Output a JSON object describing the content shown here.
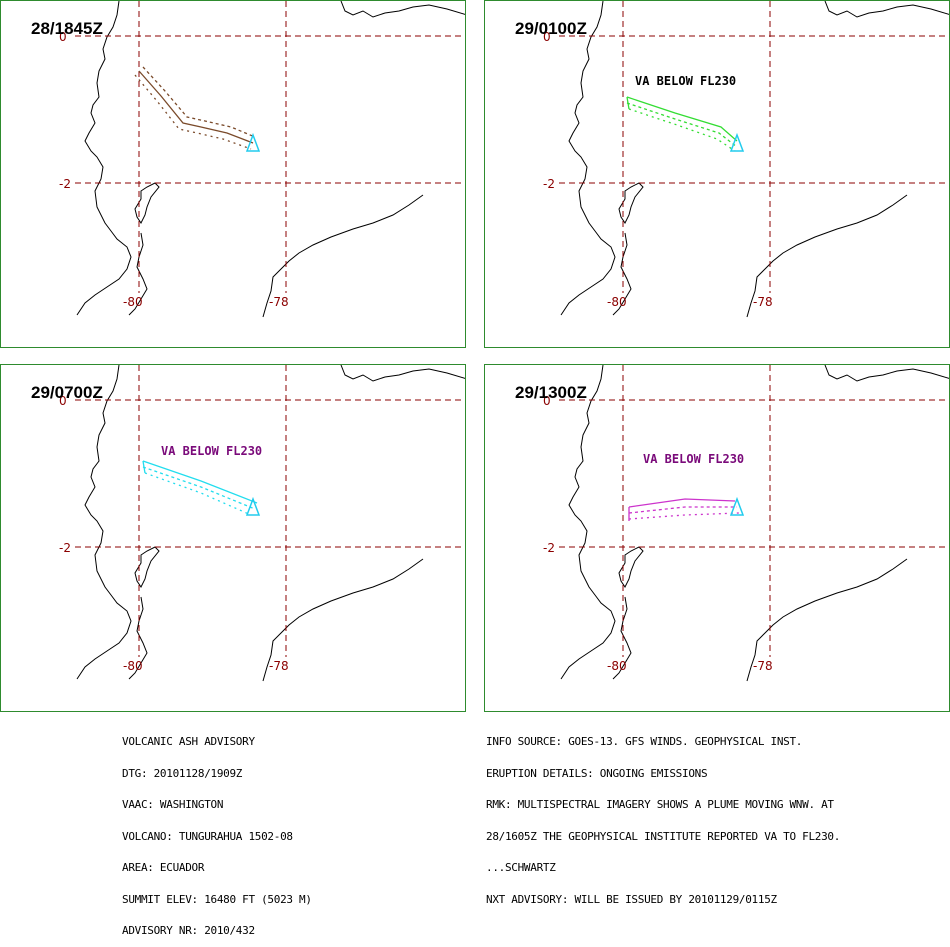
{
  "panels": [
    {
      "time": "28/1845Z",
      "label": "",
      "plume_color": "#7a4a2a",
      "label_color": "#000000"
    },
    {
      "time": "29/0100Z",
      "label": "VA BELOW FL230",
      "plume_color": "#33dd33",
      "label_color": "#000000"
    },
    {
      "time": "29/0700Z",
      "label": "VA BELOW FL230",
      "plume_color": "#22ddee",
      "label_color": "#7a0a7a"
    },
    {
      "time": "29/1300Z",
      "label": "VA BELOW FL230",
      "plume_color": "#cc33cc",
      "label_color": "#7a0a7a"
    }
  ],
  "grid": {
    "lat_labels": [
      "0",
      "-2"
    ],
    "lon_labels": [
      "-80",
      "-78"
    ]
  },
  "colors": {
    "grid": "#8b0000",
    "coast": "#000000",
    "volcano": "#22ccee",
    "frame": "#2e8b2e"
  },
  "icons": {
    "volcano": "triangle-icon"
  },
  "advisory_left": [
    "VOLCANIC ASH ADVISORY",
    "DTG: 20101128/1909Z",
    "VAAC: WASHINGTON",
    "VOLCANO: TUNGURAHUA 1502-08",
    "AREA: ECUADOR",
    "SUMMIT ELEV: 16480 FT (5023 M)",
    "ADVISORY NR: 2010/432"
  ],
  "advisory_right": [
    "INFO SOURCE: GOES-13. GFS WINDS. GEOPHYSICAL INST.",
    "ERUPTION DETAILS: ONGOING EMISSIONS",
    "RMK: MULTISPECTRAL IMAGERY SHOWS A PLUME MOVING WNW. AT",
    "28/1605Z THE GEOPHYSICAL INSTITUTE REPORTED VA TO FL230.",
    "...SCHWARTZ",
    "NXT ADVISORY: WILL BE ISSUED BY 20101129/0115Z"
  ]
}
